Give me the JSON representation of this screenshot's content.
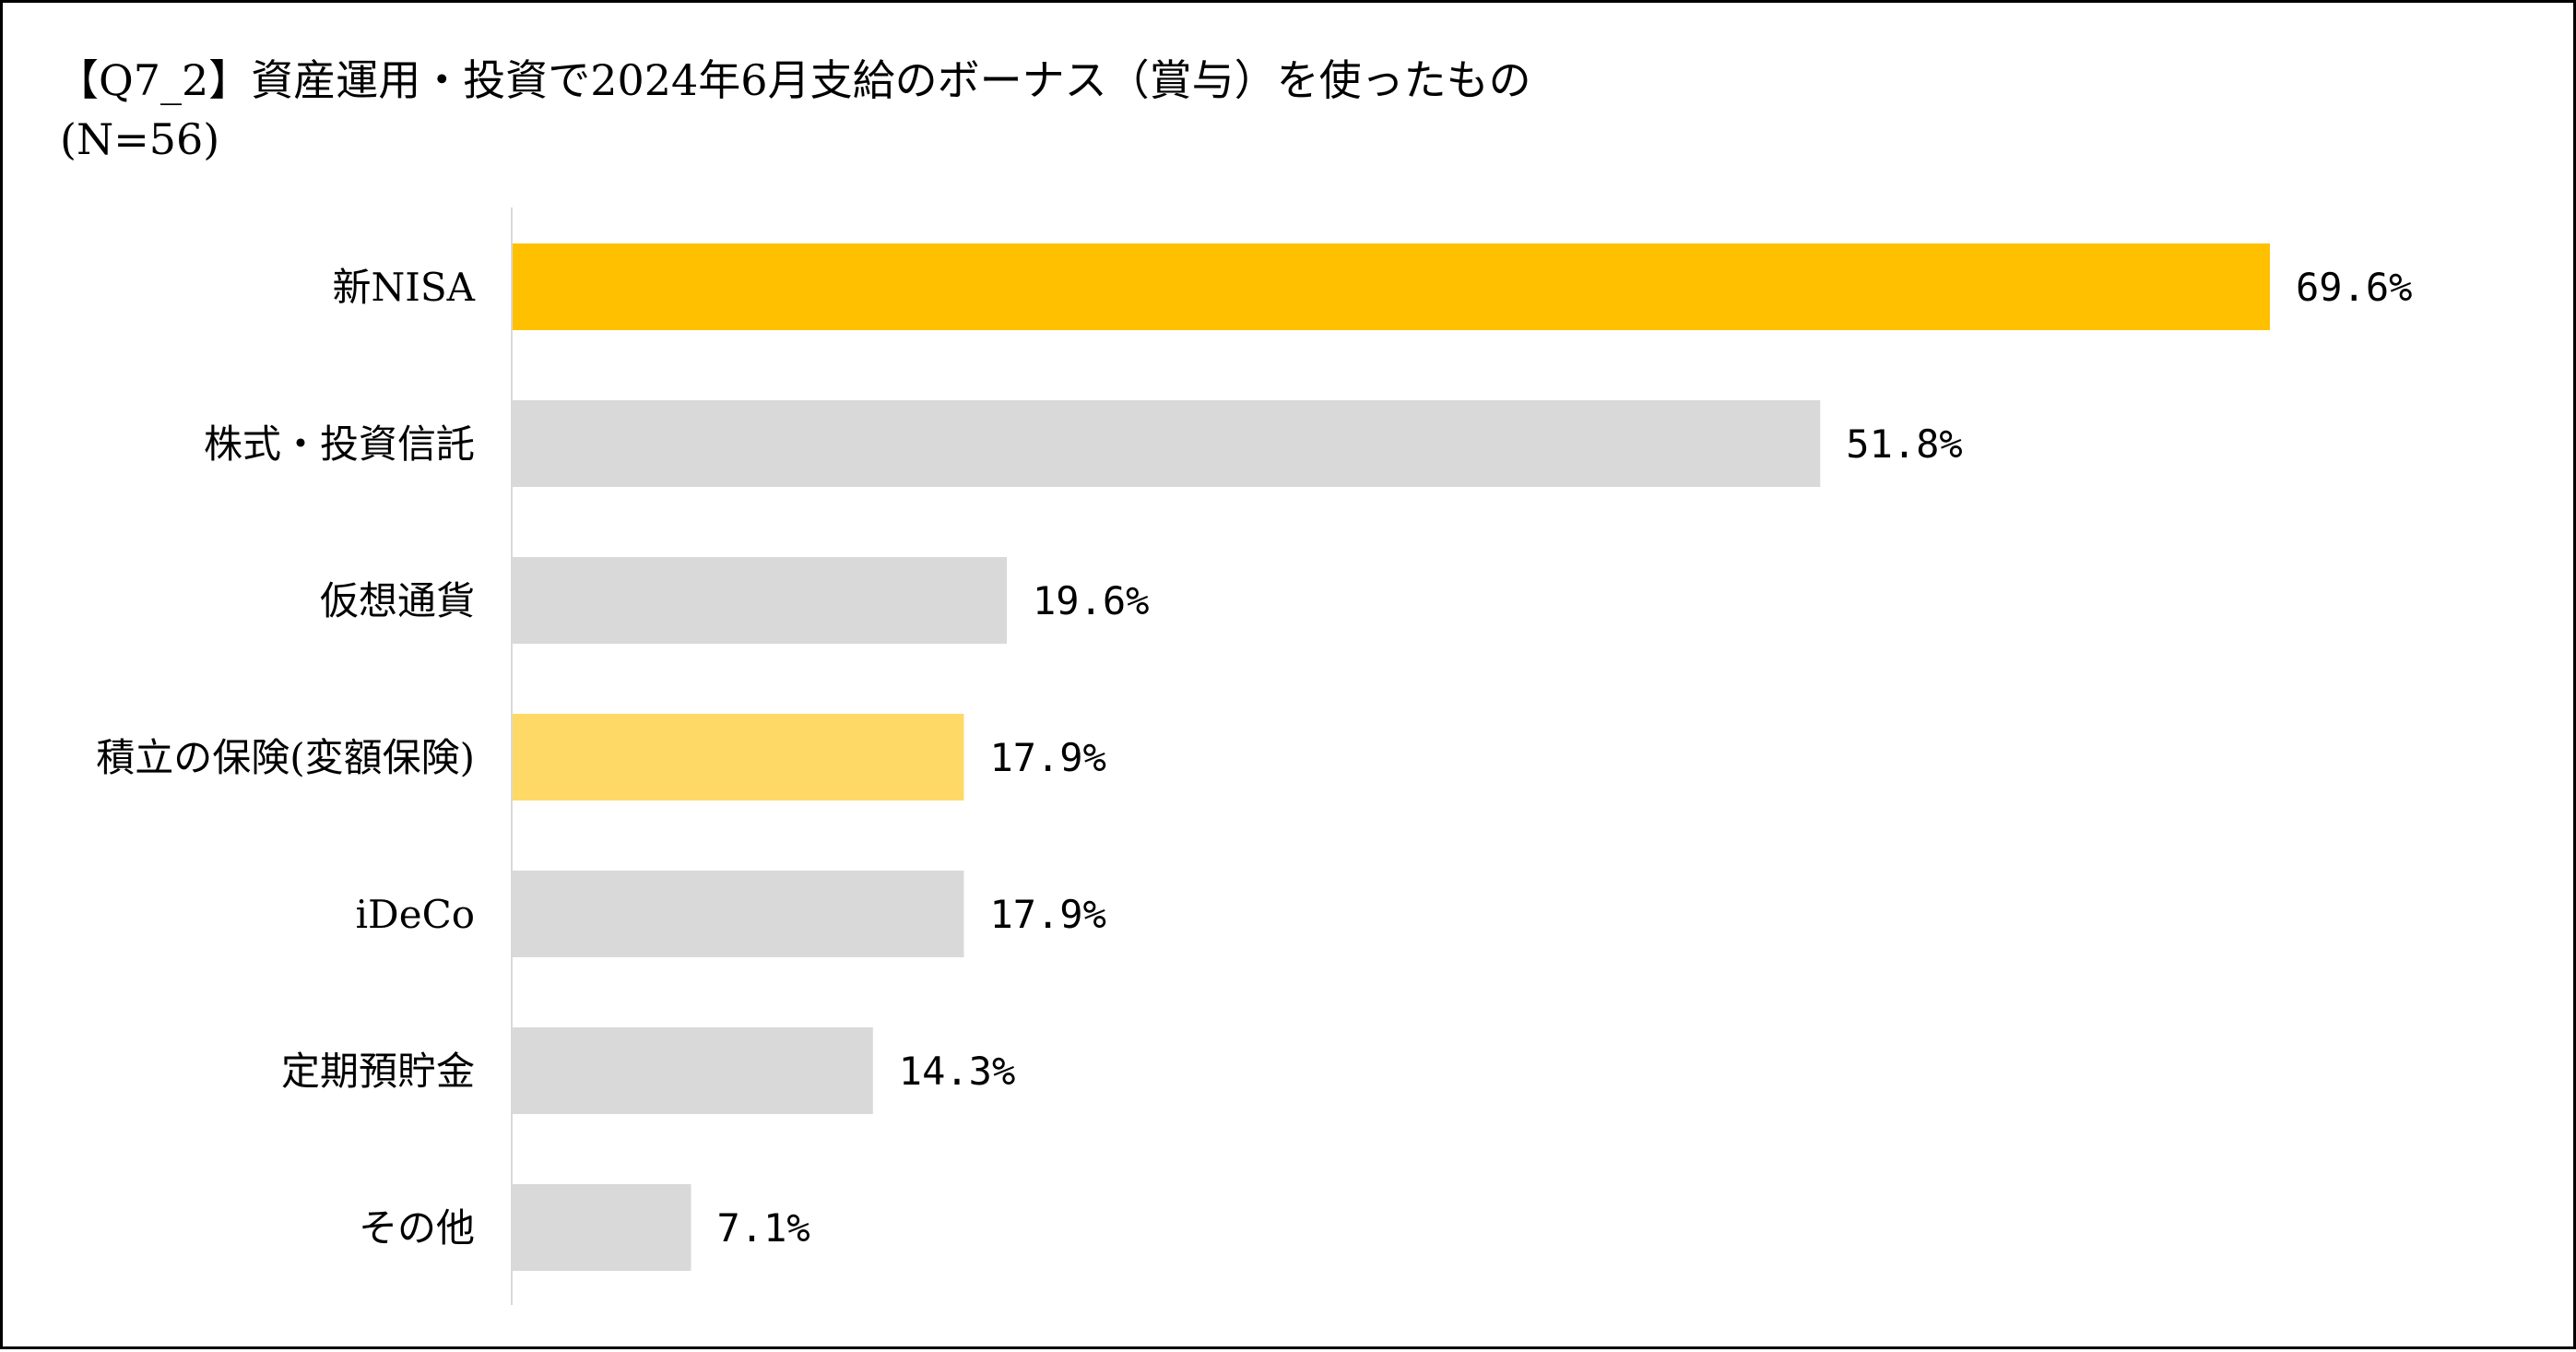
{
  "chart_data": {
    "type": "bar",
    "orientation": "horizontal",
    "title": "【Q7_2】資産運用・投資で2024年6月支給のボーナス（賞与）を使ったもの",
    "subtitle": "(N=56)",
    "categories": [
      "新NISA",
      "株式・投資信託",
      "仮想通貨",
      "積立の保険(変額保険)",
      "iDeCo",
      "定期預貯金",
      "その他"
    ],
    "values": [
      69.6,
      51.8,
      19.6,
      17.9,
      17.9,
      14.3,
      7.1
    ],
    "value_labels": [
      "69.6%",
      "51.8%",
      "19.6%",
      "17.9%",
      "17.9%",
      "14.3%",
      "7.1%"
    ],
    "colors": [
      "#FFC000",
      "#D9D9D9",
      "#D9D9D9",
      "#FFD966",
      "#D9D9D9",
      "#D9D9D9",
      "#D9D9D9"
    ],
    "axis_color": "#D9D9D9",
    "xlim": [
      0,
      69.6
    ],
    "grid": false,
    "legend": "none"
  }
}
